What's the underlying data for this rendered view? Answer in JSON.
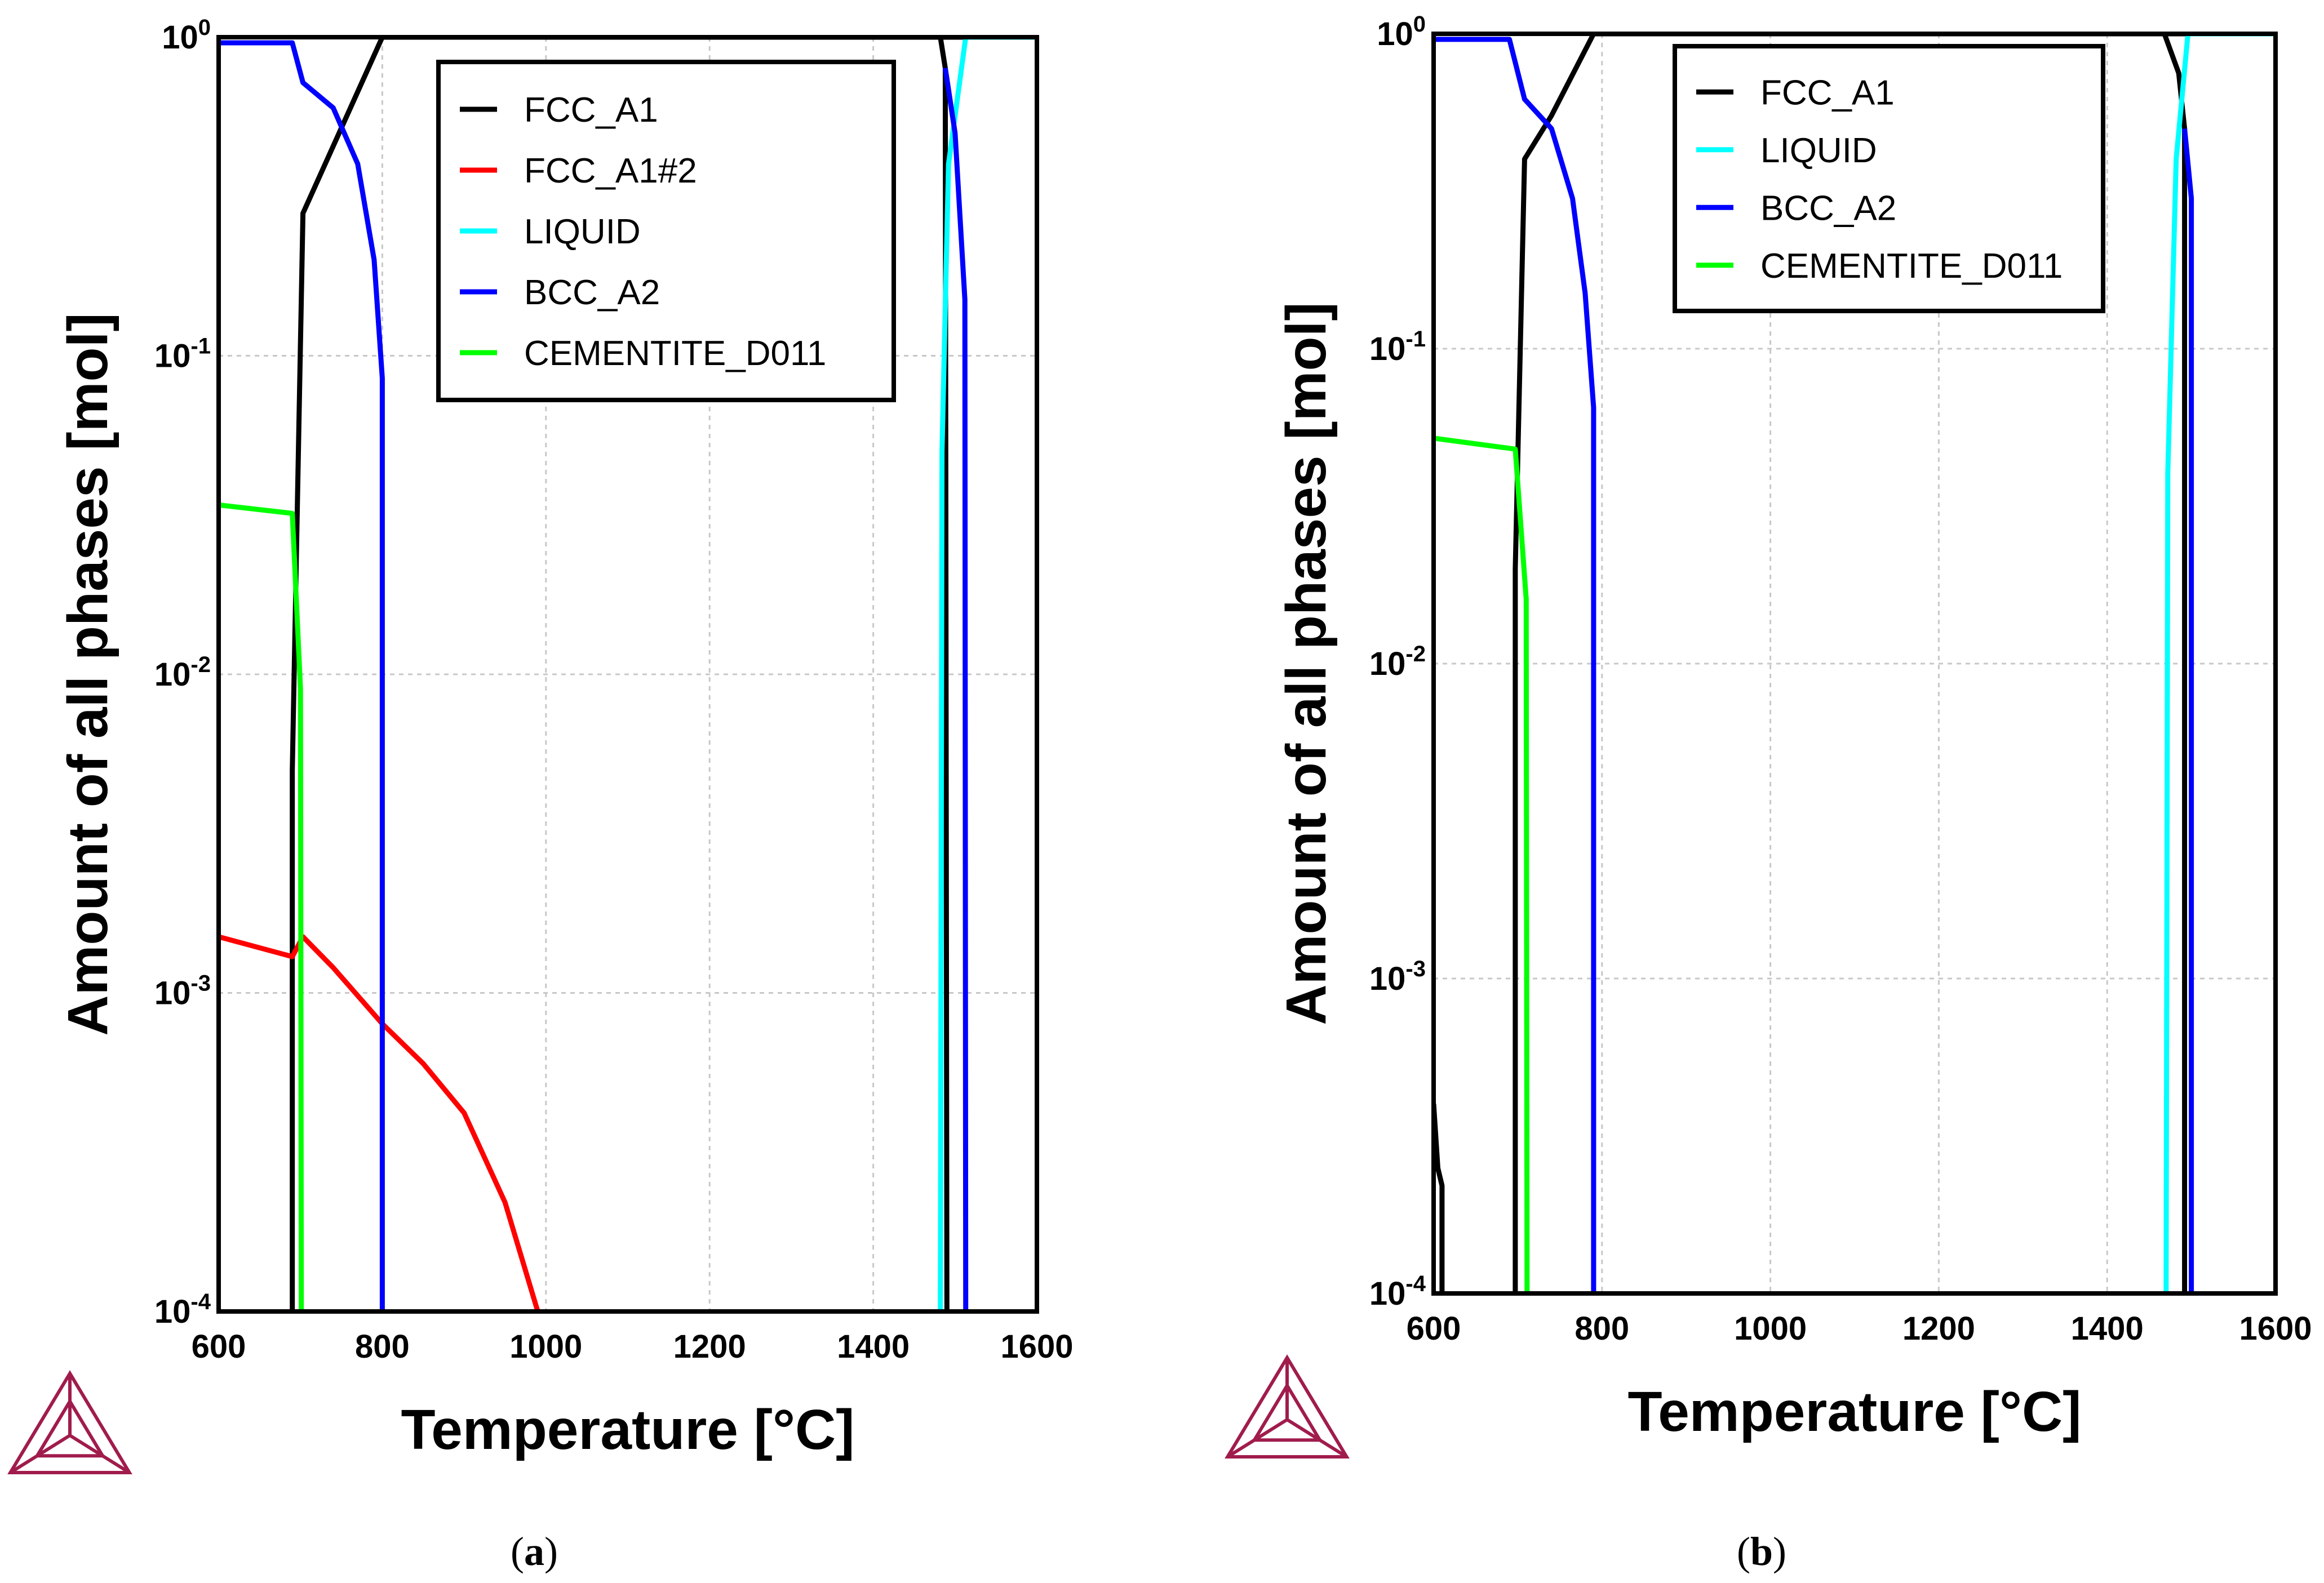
{
  "chart_data": [
    {
      "id": "a",
      "type": "line",
      "panel_label": "a",
      "xlabel": "Temperature [°C]",
      "ylabel": "Amount of all phases [mol]",
      "xlim": [
        600,
        1600
      ],
      "ylim": [
        0.0001,
        1
      ],
      "yscale": "log",
      "grid": true,
      "legend_position": "top-right",
      "xticks": [
        "600",
        "800",
        "1000",
        "1200",
        "1400",
        "1600"
      ],
      "yticks": [
        {
          "base": "10",
          "exp": "-4"
        },
        {
          "base": "10",
          "exp": "-3"
        },
        {
          "base": "10",
          "exp": "-2"
        },
        {
          "base": "10",
          "exp": "-1"
        },
        {
          "base": "10",
          "exp": "0"
        }
      ],
      "series": [
        {
          "name": "FCC_A1",
          "color": "#000000",
          "segments": [
            [
              [
                690,
                0.0001
              ],
              [
                690,
                0.005
              ],
              [
                703,
                0.28
              ],
              [
                800,
                1
              ],
              [
                1600,
                1
              ]
            ],
            [
              [
                1482,
                1
              ],
              [
                1488,
                0.8
              ],
              [
                1490,
                0.0001
              ]
            ]
          ]
        },
        {
          "name": "FCC_A1#2",
          "color": "#ff0000",
          "segments": [
            [
              [
                600,
                0.0015
              ],
              [
                690,
                0.0013
              ],
              [
                703,
                0.0015
              ],
              [
                740,
                0.0012
              ],
              [
                800,
                0.0008
              ],
              [
                850,
                0.0006
              ],
              [
                900,
                0.00042
              ],
              [
                950,
                0.00022
              ],
              [
                990,
                0.0001
              ]
            ]
          ]
        },
        {
          "name": "LIQUID",
          "color": "#00ffff",
          "segments": [
            [
              [
                1482,
                0.0001
              ],
              [
                1484,
                0.05
              ],
              [
                1492,
                0.4
              ],
              [
                1513,
                1
              ],
              [
                1600,
                1
              ]
            ]
          ]
        },
        {
          "name": "BCC_A2",
          "color": "#0000ff",
          "segments": [
            [
              [
                600,
                0.96
              ],
              [
                690,
                0.96
              ],
              [
                703,
                0.72
              ],
              [
                740,
                0.6
              ],
              [
                770,
                0.4
              ],
              [
                790,
                0.2
              ],
              [
                800,
                0.085
              ],
              [
                800,
                0.0001
              ]
            ],
            [
              [
                1488,
                0.8
              ],
              [
                1500,
                0.5
              ],
              [
                1512,
                0.15
              ],
              [
                1513,
                0.0001
              ]
            ]
          ]
        },
        {
          "name": "CEMENTITE_D011",
          "color": "#00ff00",
          "segments": [
            [
              [
                600,
                0.034
              ],
              [
                690,
                0.032
              ],
              [
                700,
                0.009
              ],
              [
                701,
                0.0001
              ]
            ]
          ]
        }
      ]
    },
    {
      "id": "b",
      "type": "line",
      "panel_label": "b",
      "xlabel": "Temperature [°C]",
      "ylabel": "Amount of all phases [mol]",
      "xlim": [
        600,
        1600
      ],
      "ylim": [
        0.0001,
        1
      ],
      "yscale": "log",
      "grid": true,
      "legend_position": "top-right",
      "xticks": [
        "600",
        "800",
        "1000",
        "1200",
        "1400",
        "1600"
      ],
      "yticks": [
        {
          "base": "10",
          "exp": "-4"
        },
        {
          "base": "10",
          "exp": "-3"
        },
        {
          "base": "10",
          "exp": "-2"
        },
        {
          "base": "10",
          "exp": "-1"
        },
        {
          "base": "10",
          "exp": "0"
        }
      ],
      "series": [
        {
          "name": "FCC_A1",
          "color": "#000000",
          "segments": [
            [
              [
                600,
                0.0004
              ],
              [
                605,
                0.00025
              ],
              [
                610,
                0.00022
              ],
              [
                610,
                0.0001
              ]
            ],
            [
              [
                697,
                0.0001
              ],
              [
                697,
                0.02
              ],
              [
                708,
                0.4
              ],
              [
                740,
                0.55
              ],
              [
                790,
                1
              ],
              [
                1600,
                1
              ]
            ],
            [
              [
                1468,
                1
              ],
              [
                1485,
                0.75
              ],
              [
                1492,
                0.5
              ],
              [
                1492,
                0.0001
              ]
            ]
          ]
        },
        {
          "name": "LIQUID",
          "color": "#00ffff",
          "segments": [
            [
              [
                1470,
                0.0001
              ],
              [
                1472,
                0.04
              ],
              [
                1482,
                0.4
              ],
              [
                1496,
                1
              ],
              [
                1600,
                1
              ]
            ]
          ]
        },
        {
          "name": "BCC_A2",
          "color": "#0000ff",
          "segments": [
            [
              [
                600,
                0.96
              ],
              [
                690,
                0.96
              ],
              [
                708,
                0.62
              ],
              [
                740,
                0.5
              ],
              [
                765,
                0.3
              ],
              [
                780,
                0.15
              ],
              [
                790,
                0.065
              ],
              [
                790,
                0.0001
              ]
            ],
            [
              [
                1492,
                0.5
              ],
              [
                1500,
                0.3
              ],
              [
                1500,
                0.0001
              ]
            ]
          ]
        },
        {
          "name": "CEMENTITE_D011",
          "color": "#00ff00",
          "segments": [
            [
              [
                600,
                0.052
              ],
              [
                697,
                0.048
              ],
              [
                710,
                0.016
              ],
              [
                711,
                0.0001
              ]
            ]
          ]
        }
      ]
    }
  ]
}
